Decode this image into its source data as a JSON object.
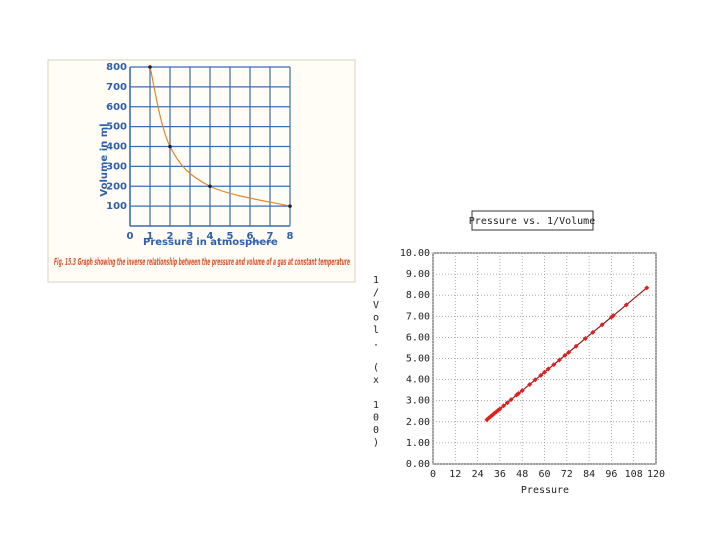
{
  "chart_data": [
    {
      "type": "line",
      "marker": "dot",
      "caption": "Fig. 15.3 Graph showing the inverse relationship between the pressure and volume of a gas at constant temperature",
      "xlabel": "Pressure in atmosphere",
      "ylabel": "Volume in ml",
      "x": [
        1,
        2,
        4,
        8
      ],
      "values": [
        800,
        400,
        200,
        100
      ],
      "color": "#e0872a",
      "xlim": [
        0,
        8
      ],
      "xticks": [
        0,
        1,
        2,
        3,
        4,
        5,
        6,
        7,
        8
      ],
      "ylim": [
        0,
        800
      ],
      "yticks": [
        100,
        200,
        300,
        400,
        500,
        600,
        700,
        800
      ],
      "grid": true,
      "grid_color": "#3a6db5"
    },
    {
      "type": "line",
      "marker": "diamond",
      "title": "Pressure vs. 1/Volume",
      "xlabel": "Pressure",
      "ylabel": "1/Vol. (x 100)",
      "x": [
        29,
        30,
        31,
        32,
        33,
        34,
        35,
        36,
        38,
        40,
        42,
        45,
        46,
        48,
        52,
        55,
        58,
        60,
        62,
        65,
        68,
        71,
        73,
        77,
        82,
        86,
        91,
        96,
        97,
        104,
        115
      ],
      "values": [
        2.1,
        2.18,
        2.25,
        2.32,
        2.4,
        2.47,
        2.54,
        2.61,
        2.76,
        2.9,
        3.05,
        3.27,
        3.34,
        3.48,
        3.77,
        3.99,
        4.2,
        4.35,
        4.5,
        4.71,
        4.93,
        5.15,
        5.29,
        5.58,
        5.95,
        6.24,
        6.6,
        6.96,
        7.03,
        7.54,
        8.35
      ],
      "color": "#8b1a1a",
      "marker_color": "#e02020",
      "xlim": [
        0,
        120
      ],
      "xticks": [
        0,
        12,
        24,
        36,
        48,
        60,
        72,
        84,
        96,
        108,
        120
      ],
      "ylim": [
        0,
        10
      ],
      "yticks": [
        {
          "value": 0,
          "label": "0.00"
        },
        {
          "value": 1,
          "label": "1.00"
        },
        {
          "value": 2,
          "label": "2.00"
        },
        {
          "value": 3,
          "label": "3.00"
        },
        {
          "value": 4,
          "label": "4.00"
        },
        {
          "value": 5,
          "label": "5.00"
        },
        {
          "value": 6,
          "label": "6.00"
        },
        {
          "value": 7,
          "label": "7.00"
        },
        {
          "value": 8,
          "label": "8.00"
        },
        {
          "value": 9,
          "label": "9.00"
        },
        {
          "value": 10,
          "label": "10.00"
        }
      ],
      "grid": true,
      "grid_color": "#999"
    }
  ]
}
